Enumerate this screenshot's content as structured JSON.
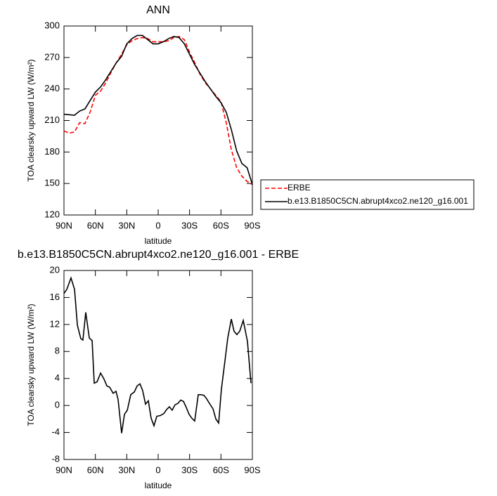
{
  "chart_data": [
    {
      "type": "line",
      "title": "ANN",
      "xlabel": "latitude",
      "ylabel": "TOA clearsky upward LW (W/m²)",
      "x": [
        90,
        85,
        80,
        75,
        70,
        65,
        60,
        55,
        50,
        45,
        40,
        35,
        30,
        25,
        20,
        15,
        10,
        5,
        0,
        -5,
        -10,
        -15,
        -20,
        -25,
        -30,
        -35,
        -40,
        -45,
        -50,
        -55,
        -60,
        -65,
        -70,
        -75,
        -80,
        -85,
        -90
      ],
      "series": [
        {
          "name": "ERBE",
          "color": "#ff0000",
          "style": "dashed",
          "values": [
            200,
            198,
            199,
            208,
            207,
            218,
            234,
            238,
            246,
            256,
            265,
            273,
            282,
            286,
            288,
            289,
            288,
            285,
            285,
            285,
            286,
            289,
            290,
            287,
            275,
            265,
            254,
            246,
            240,
            234,
            228,
            208,
            182,
            165,
            157,
            152,
            149
          ]
        },
        {
          "name": "b.e13.B1850C5CN.abrupt4xco2.ne120_g16.001",
          "color": "#000000",
          "style": "solid",
          "values": [
            216,
            215.5,
            215,
            219,
            221,
            229,
            237,
            242,
            249,
            257,
            265,
            271,
            283,
            288,
            291,
            291,
            287,
            283,
            283,
            285,
            288,
            290,
            289,
            283,
            273,
            263,
            255,
            247,
            240,
            233,
            227,
            218,
            201,
            181,
            169,
            165,
            149
          ]
        }
      ],
      "xlim": [
        90,
        -90
      ],
      "xticks": [
        {
          "value": 90,
          "label": "90N"
        },
        {
          "value": 60,
          "label": "60N"
        },
        {
          "value": 30,
          "label": "30N"
        },
        0,
        {
          "value": -30,
          "label": "30S"
        },
        {
          "value": -60,
          "label": "60S"
        },
        {
          "value": -90,
          "label": "90S"
        }
      ],
      "ylim": [
        120,
        300
      ],
      "yticks": [
        120,
        150,
        180,
        210,
        240,
        270,
        300
      ],
      "legend": "right"
    },
    {
      "type": "line",
      "title": "b.e13.B1850C5CN.abrupt4xco2.ne120_g16.001 - ERBE",
      "xlabel": "latitude",
      "ylabel": "TOA clearsky upward LW (W/m²)",
      "x": [
        90,
        87.3,
        83.3,
        79.9,
        77.2,
        73.9,
        71.9,
        69.2,
        65.8,
        63.1,
        61.1,
        58.4,
        55.0,
        51.7,
        49.0,
        46.3,
        43.0,
        40.3,
        38.3,
        34.9,
        32.2,
        29.5,
        26.2,
        22.8,
        20.1,
        17.4,
        14.8,
        12.1,
        9.4,
        6.7,
        4.0,
        1.3,
        -2.0,
        -5.4,
        -8.1,
        -10.7,
        -13.4,
        -16.1,
        -18.8,
        -21.5,
        -24.2,
        -26.9,
        -29.5,
        -32.2,
        -34.9,
        -38.3,
        -41.0,
        -43.7,
        -46.3,
        -49.0,
        -52.4,
        -55.1,
        -57.8,
        -60.4,
        -63.8,
        -66.5,
        -69.9,
        -72.5,
        -75.2,
        -77.9,
        -81.3,
        -85.3,
        -88.7
      ],
      "values": [
        16.6,
        17.2,
        18.9,
        17.2,
        11.9,
        9.9,
        9.7,
        13.8,
        10.0,
        9.6,
        3.3,
        3.5,
        4.8,
        3.9,
        2.9,
        2.7,
        1.8,
        2.1,
        0.9,
        -4.1,
        -1.3,
        -0.7,
        1.6,
        2.0,
        2.9,
        3.2,
        2.2,
        0.2,
        0.7,
        -1.9,
        -3.0,
        -1.6,
        -1.5,
        -1.2,
        -0.6,
        -0.2,
        -0.7,
        0.1,
        0.3,
        0.8,
        0.6,
        -0.3,
        -1.3,
        -1.9,
        -2.3,
        1.6,
        1.6,
        1.5,
        1.0,
        0.3,
        -0.5,
        -2.0,
        -2.6,
        2.4,
        6.6,
        10.0,
        12.8,
        11.0,
        10.5,
        11.0,
        12.6,
        9.5,
        3.3
      ],
      "color": "#000000",
      "xlim": [
        90,
        -90
      ],
      "xticks": [
        {
          "value": 90,
          "label": "90N"
        },
        {
          "value": 60,
          "label": "60N"
        },
        {
          "value": 30,
          "label": "30N"
        },
        0,
        {
          "value": -30,
          "label": "30S"
        },
        {
          "value": -60,
          "label": "60S"
        },
        {
          "value": -90,
          "label": "90S"
        }
      ],
      "ylim": [
        -8,
        20
      ],
      "yticks": [
        -8,
        -4,
        0,
        4,
        8,
        12,
        16,
        20
      ]
    }
  ]
}
